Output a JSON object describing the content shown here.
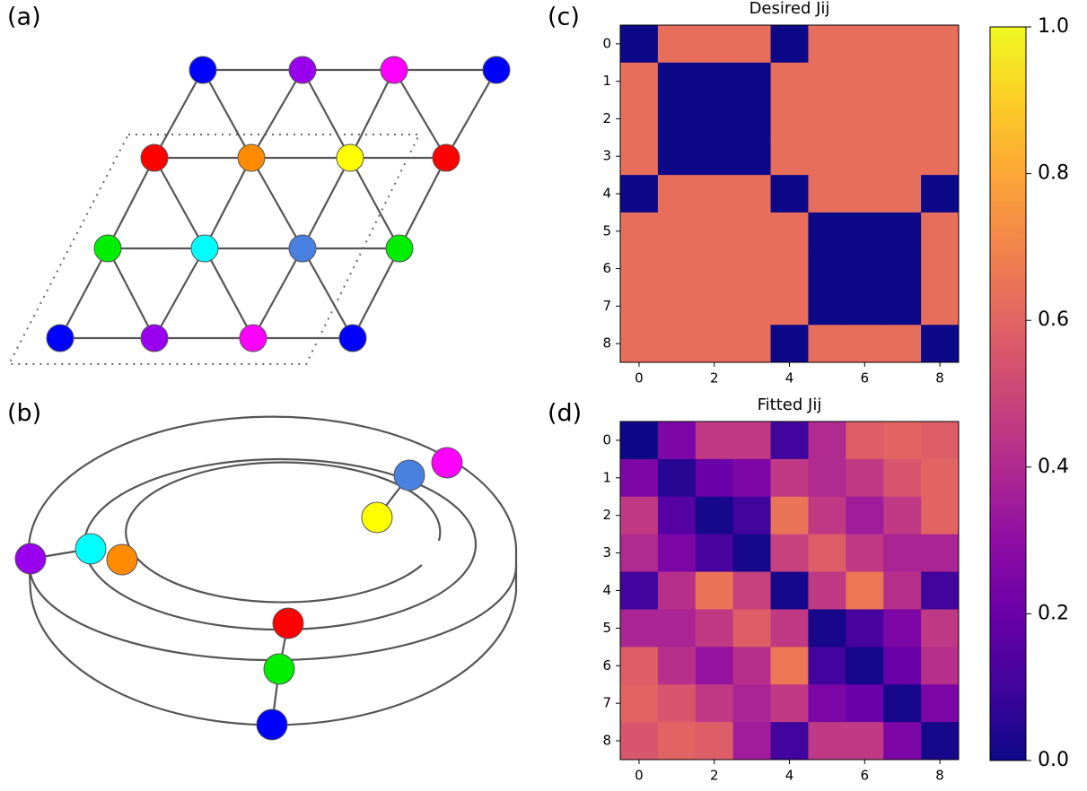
{
  "panel_labels": [
    "(a)",
    "(b)",
    "(c)",
    "(d)"
  ],
  "chart_data": [
    {
      "type": "heatmap",
      "title": "Desired Jij",
      "values": [
        [
          0,
          0.63,
          0.63,
          0.63,
          0,
          0.63,
          0.63,
          0.63,
          0.63
        ],
        [
          0.63,
          0,
          0,
          0,
          0.63,
          0.63,
          0.63,
          0.63,
          0.63
        ],
        [
          0.63,
          0,
          0,
          0,
          0.63,
          0.63,
          0.63,
          0.63,
          0.63
        ],
        [
          0.63,
          0,
          0,
          0,
          0.63,
          0.63,
          0.63,
          0.63,
          0.63
        ],
        [
          0,
          0.63,
          0.63,
          0.63,
          0,
          0.63,
          0.63,
          0.63,
          0
        ],
        [
          0.63,
          0.63,
          0.63,
          0.63,
          0.63,
          0,
          0,
          0,
          0.63
        ],
        [
          0.63,
          0.63,
          0.63,
          0.63,
          0.63,
          0,
          0,
          0,
          0.63
        ],
        [
          0.63,
          0.63,
          0.63,
          0.63,
          0.63,
          0,
          0,
          0,
          0.63
        ],
        [
          0.63,
          0.63,
          0.63,
          0.63,
          0,
          0.63,
          0.63,
          0.63,
          0
        ]
      ],
      "xlim": [
        -0.5,
        8.5
      ],
      "ylim": [
        8.5,
        -0.5
      ],
      "xticks": [
        0,
        2,
        4,
        6,
        8
      ],
      "yticks": [
        0,
        1,
        2,
        3,
        4,
        5,
        6,
        7,
        8
      ]
    },
    {
      "type": "heatmap",
      "title": "Fitted Jij",
      "values": [
        [
          0.0,
          0.25,
          0.45,
          0.45,
          0.1,
          0.4,
          0.58,
          0.6,
          0.58
        ],
        [
          0.25,
          0.05,
          0.2,
          0.25,
          0.45,
          0.4,
          0.45,
          0.55,
          0.6
        ],
        [
          0.45,
          0.15,
          0.02,
          0.1,
          0.65,
          0.45,
          0.35,
          0.45,
          0.6
        ],
        [
          0.4,
          0.25,
          0.12,
          0.02,
          0.48,
          0.58,
          0.45,
          0.38,
          0.38
        ],
        [
          0.1,
          0.42,
          0.65,
          0.48,
          0.02,
          0.45,
          0.66,
          0.42,
          0.1
        ],
        [
          0.38,
          0.38,
          0.45,
          0.58,
          0.45,
          0.02,
          0.12,
          0.25,
          0.45
        ],
        [
          0.58,
          0.42,
          0.32,
          0.42,
          0.66,
          0.1,
          0.02,
          0.2,
          0.42
        ],
        [
          0.6,
          0.55,
          0.45,
          0.38,
          0.45,
          0.25,
          0.2,
          0.02,
          0.25
        ],
        [
          0.55,
          0.6,
          0.58,
          0.35,
          0.1,
          0.45,
          0.45,
          0.25,
          0.02
        ]
      ],
      "xlim": [
        -0.5,
        8.5
      ],
      "ylim": [
        8.5,
        -0.5
      ],
      "xticks": [
        0,
        2,
        4,
        6,
        8
      ],
      "yticks": [
        0,
        1,
        2,
        3,
        4,
        5,
        6,
        7,
        8
      ]
    }
  ],
  "colorbar": {
    "colormap": "plasma",
    "lim": [
      0,
      1
    ],
    "ticks": [
      {
        "value": 0,
        "label": "0.0"
      },
      {
        "value": 0.2,
        "label": "0.2"
      },
      {
        "value": 0.4,
        "label": "0.4"
      },
      {
        "value": 0.6,
        "label": "0.6"
      },
      {
        "value": 0.8,
        "label": "0.8"
      },
      {
        "value": 1,
        "label": "1.0"
      }
    ]
  }
}
